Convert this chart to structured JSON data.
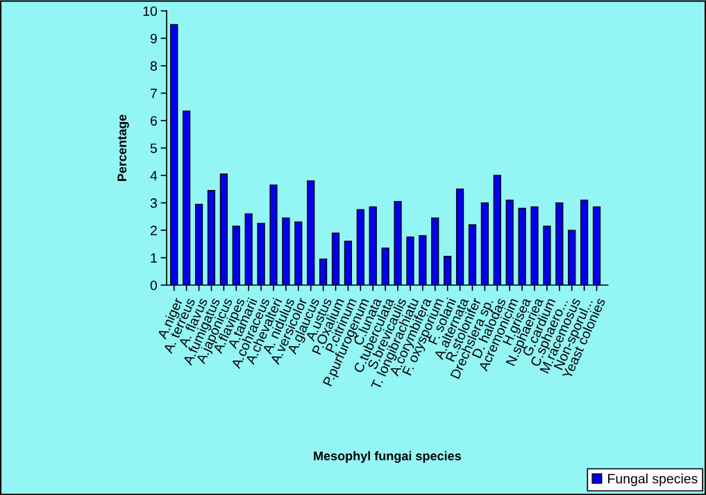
{
  "chart_data": {
    "type": "bar",
    "xlabel": "Mesophyl fungai species",
    "ylabel": "Percentage",
    "categories": [
      "A.niger",
      "A. terreus",
      "A. flavus",
      "A.fumigatus",
      "A.japonicus",
      "A.flavipes",
      "A.tamarii",
      "A.cohraceus",
      "A.chevalteri",
      "A. nidulus",
      "A.versicolor",
      "A.glaucus",
      "A.ustus",
      "P.Oxalium",
      "P.citrinum",
      "P.purfurogenum",
      "C.lunata",
      "C.tuberculata",
      "S.brevicaulis",
      "T. longibrachiatu",
      "A.corymbifera",
      "F. oxysporium",
      "F. solani",
      "A.alternata",
      "R.stolonifer",
      "Drechslera sp.",
      "D. halodas",
      "Acremonicim",
      "H.grisea",
      "N.sphaeriea",
      "G.cardium",
      "C.sphaero...",
      "M.racemosus",
      "Non-sporul...",
      "Yeast colonies"
    ],
    "series": [
      {
        "name": "Fungal species",
        "color": "#0000ee",
        "values": [
          9.5,
          6.35,
          2.95,
          3.45,
          4.05,
          2.15,
          2.6,
          2.25,
          3.65,
          2.45,
          2.3,
          3.8,
          0.95,
          1.9,
          1.6,
          2.75,
          2.85,
          1.35,
          3.05,
          1.75,
          1.8,
          2.45,
          1.05,
          3.5,
          2.2,
          3.0,
          4.0,
          3.1,
          2.8,
          2.85,
          2.15,
          3.0,
          2.0,
          3.1,
          2.85
        ]
      }
    ],
    "ylim": [
      0,
      10
    ],
    "yticks": [
      0,
      1,
      2,
      3,
      4,
      5,
      6,
      7,
      8,
      9,
      10
    ],
    "grid": false,
    "legend": "bottom right"
  }
}
